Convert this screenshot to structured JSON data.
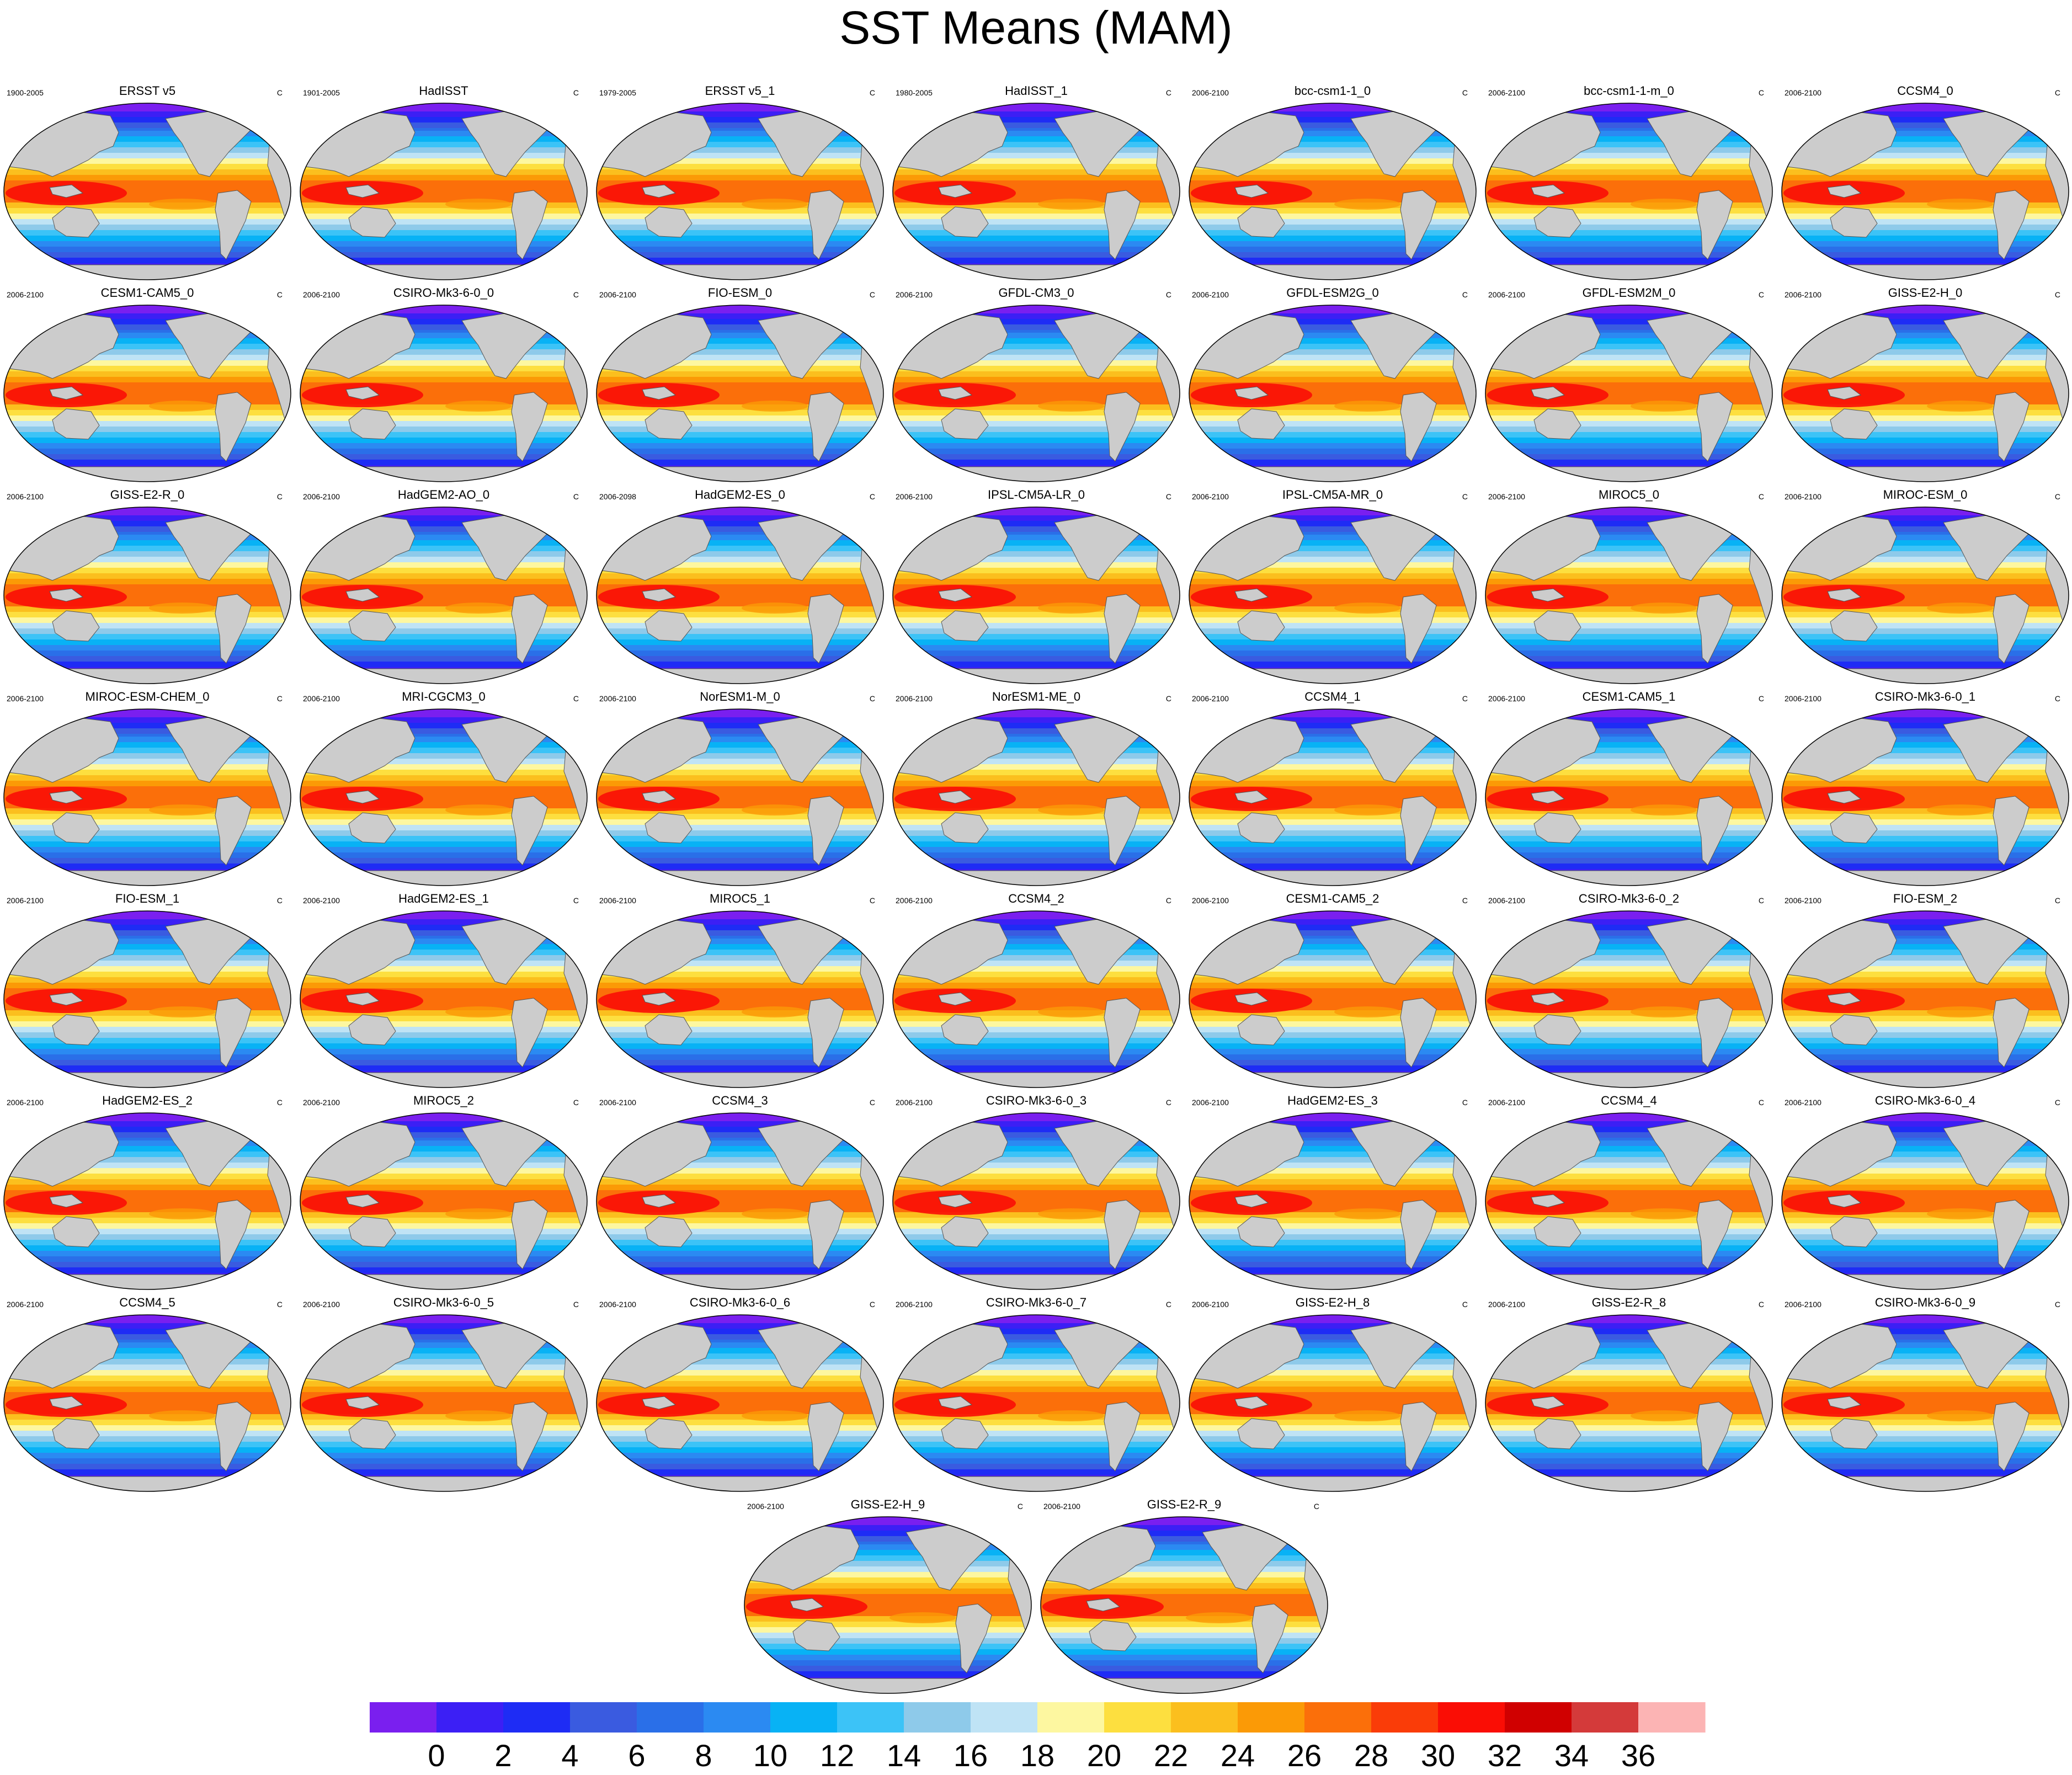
{
  "title": "SST Means (MAM)",
  "units": "C",
  "panels": [
    {
      "name": "ERSST v5",
      "period": "1900-2005"
    },
    {
      "name": "HadISST",
      "period": "1901-2005"
    },
    {
      "name": "ERSST v5_1",
      "period": "1979-2005"
    },
    {
      "name": "HadISST_1",
      "period": "1980-2005"
    },
    {
      "name": "bcc-csm1-1_0",
      "period": "2006-2100"
    },
    {
      "name": "bcc-csm1-1-m_0",
      "period": "2006-2100"
    },
    {
      "name": "CCSM4_0",
      "period": "2006-2100"
    },
    {
      "name": "CESM1-CAM5_0",
      "period": "2006-2100"
    },
    {
      "name": "CSIRO-Mk3-6-0_0",
      "period": "2006-2100"
    },
    {
      "name": "FIO-ESM_0",
      "period": "2006-2100"
    },
    {
      "name": "GFDL-CM3_0",
      "period": "2006-2100"
    },
    {
      "name": "GFDL-ESM2G_0",
      "period": "2006-2100"
    },
    {
      "name": "GFDL-ESM2M_0",
      "period": "2006-2100"
    },
    {
      "name": "GISS-E2-H_0",
      "period": "2006-2100"
    },
    {
      "name": "GISS-E2-R_0",
      "period": "2006-2100"
    },
    {
      "name": "HadGEM2-AO_0",
      "period": "2006-2100"
    },
    {
      "name": "HadGEM2-ES_0",
      "period": "2006-2098"
    },
    {
      "name": "IPSL-CM5A-LR_0",
      "period": "2006-2100"
    },
    {
      "name": "IPSL-CM5A-MR_0",
      "period": "2006-2100"
    },
    {
      "name": "MIROC5_0",
      "period": "2006-2100"
    },
    {
      "name": "MIROC-ESM_0",
      "period": "2006-2100"
    },
    {
      "name": "MIROC-ESM-CHEM_0",
      "period": "2006-2100"
    },
    {
      "name": "MRI-CGCM3_0",
      "period": "2006-2100"
    },
    {
      "name": "NorESM1-M_0",
      "period": "2006-2100"
    },
    {
      "name": "NorESM1-ME_0",
      "period": "2006-2100"
    },
    {
      "name": "CCSM4_1",
      "period": "2006-2100"
    },
    {
      "name": "CESM1-CAM5_1",
      "period": "2006-2100"
    },
    {
      "name": "CSIRO-Mk3-6-0_1",
      "period": "2006-2100"
    },
    {
      "name": "FIO-ESM_1",
      "period": "2006-2100"
    },
    {
      "name": "HadGEM2-ES_1",
      "period": "2006-2100"
    },
    {
      "name": "MIROC5_1",
      "period": "2006-2100"
    },
    {
      "name": "CCSM4_2",
      "period": "2006-2100"
    },
    {
      "name": "CESM1-CAM5_2",
      "period": "2006-2100"
    },
    {
      "name": "CSIRO-Mk3-6-0_2",
      "period": "2006-2100"
    },
    {
      "name": "FIO-ESM_2",
      "period": "2006-2100"
    },
    {
      "name": "HadGEM2-ES_2",
      "period": "2006-2100"
    },
    {
      "name": "MIROC5_2",
      "period": "2006-2100"
    },
    {
      "name": "CCSM4_3",
      "period": "2006-2100"
    },
    {
      "name": "CSIRO-Mk3-6-0_3",
      "period": "2006-2100"
    },
    {
      "name": "HadGEM2-ES_3",
      "period": "2006-2100"
    },
    {
      "name": "CCSM4_4",
      "period": "2006-2100"
    },
    {
      "name": "CSIRO-Mk3-6-0_4",
      "period": "2006-2100"
    },
    {
      "name": "CCSM4_5",
      "period": "2006-2100"
    },
    {
      "name": "CSIRO-Mk3-6-0_5",
      "period": "2006-2100"
    },
    {
      "name": "CSIRO-Mk3-6-0_6",
      "period": "2006-2100"
    },
    {
      "name": "CSIRO-Mk3-6-0_7",
      "period": "2006-2100"
    },
    {
      "name": "GISS-E2-H_8",
      "period": "2006-2100"
    },
    {
      "name": "GISS-E2-R_8",
      "period": "2006-2100"
    },
    {
      "name": "CSIRO-Mk3-6-0_9",
      "period": "2006-2100"
    },
    {
      "name": "GISS-E2-H_9",
      "period": "2006-2100"
    },
    {
      "name": "GISS-E2-R_9",
      "period": "2006-2100"
    }
  ],
  "chart_data": {
    "type": "heatmap",
    "title": "SST Means (MAM)",
    "units": "C",
    "colorbar": {
      "levels": [
        0,
        2,
        4,
        6,
        8,
        10,
        12,
        14,
        16,
        18,
        20,
        22,
        24,
        26,
        28,
        30,
        32,
        34,
        36
      ],
      "tick_labels": [
        "0",
        "2",
        "4",
        "6",
        "8",
        "10",
        "12",
        "14",
        "16",
        "18",
        "20",
        "22",
        "24",
        "26",
        "28",
        "30",
        "32",
        "34",
        "36"
      ],
      "colors": [
        "#7a1fef",
        "#3c1ff5",
        "#1e2cf5",
        "#3a5be0",
        "#2a6fe8",
        "#2b8af2",
        "#08b2f5",
        "#3cc3f7",
        "#8ecaea",
        "#bfe3f5",
        "#fdf7a0",
        "#fddf3f",
        "#fbbf1e",
        "#fb9a06",
        "#fb6f0a",
        "#fa3c08",
        "#fa0d05",
        "#d00000",
        "#d43a3a",
        "#fcb4b4"
      ]
    },
    "land_color": "#cccccc"
  }
}
